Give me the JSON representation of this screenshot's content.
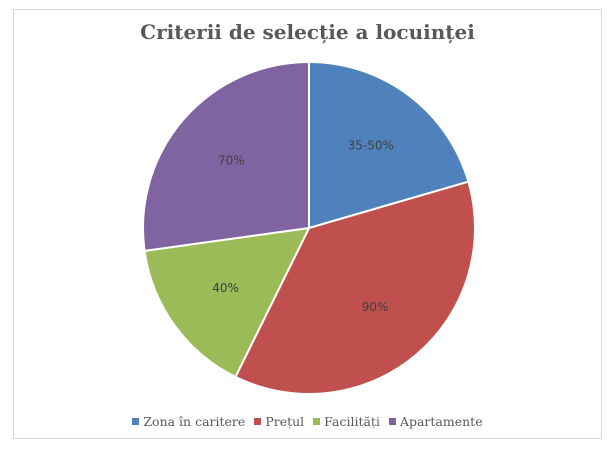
{
  "chart_data": {
    "type": "pie",
    "title": "Criterii de selecție a locuinței",
    "legend_position": "bottom",
    "slices": [
      {
        "name": "Zona în caritere",
        "label": "35-50%",
        "value": 20.5,
        "color": "#4f81bd"
      },
      {
        "name": "Prețul",
        "label": "90%",
        "value": 36.8,
        "color": "#c0504d"
      },
      {
        "name": "Facilități",
        "label": "40%",
        "value": 15.5,
        "color": "#9bbb59"
      },
      {
        "name": "Apartamente",
        "label": "70%",
        "value": 27.2,
        "color": "#8064a2"
      }
    ]
  }
}
